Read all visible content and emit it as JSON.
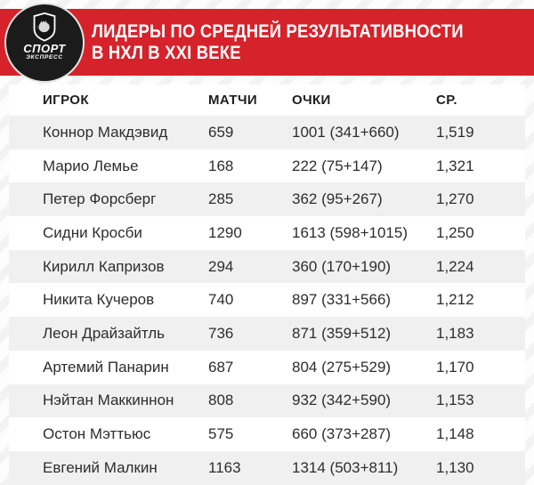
{
  "logo": {
    "line1": "СПОРТ",
    "line2": "ЭКСПРЕСС",
    "emblem": "rooster-shield",
    "circle_color": "#1b1b1b"
  },
  "banner": {
    "title_line1": "ЛИДЕРЫ ПО СРЕДНЕЙ РЕЗУЛЬТАТИВНОСТИ",
    "title_line2": "В НХЛ В XXI ВЕКЕ",
    "background_color": "#d6222a",
    "text_color": "#ffffff"
  },
  "chart_data": {
    "type": "table",
    "title": "ЛИДЕРЫ ПО СРЕДНЕЙ РЕЗУЛЬТАТИВНОСТИ В НХЛ В XXI ВЕКЕ",
    "columns": [
      "ИГРОК",
      "МАТЧИ",
      "ОЧКИ",
      "СР."
    ],
    "zebra_color": "#f0f0f0",
    "rows": [
      [
        "Коннор Макдэвид",
        "659",
        "1001 (341+660)",
        "1,519"
      ],
      [
        "Марио Лемье",
        "168",
        "222 (75+147)",
        "1,321"
      ],
      [
        "Петер Форсберг",
        "285",
        "362 (95+267)",
        "1,270"
      ],
      [
        "Сидни Кросби",
        "1290",
        "1613 (598+1015)",
        "1,250"
      ],
      [
        "Кирилл Капризов",
        "294",
        "360 (170+190)",
        "1,224"
      ],
      [
        "Никита Кучеров",
        "740",
        "897 (331+566)",
        "1,212"
      ],
      [
        "Леон Драйзайтль",
        "736",
        "871 (359+512)",
        "1,183"
      ],
      [
        "Артемий Панарин",
        "687",
        "804 (275+529)",
        "1,170"
      ],
      [
        "Нэйтан Маккиннон",
        "808",
        "932 (342+590)",
        "1,153"
      ],
      [
        "Остон Мэттьюс",
        "575",
        "660 (373+287)",
        "1,148"
      ],
      [
        "Евгений Малкин",
        "1163",
        "1314 (503+811)",
        "1,130"
      ]
    ]
  }
}
